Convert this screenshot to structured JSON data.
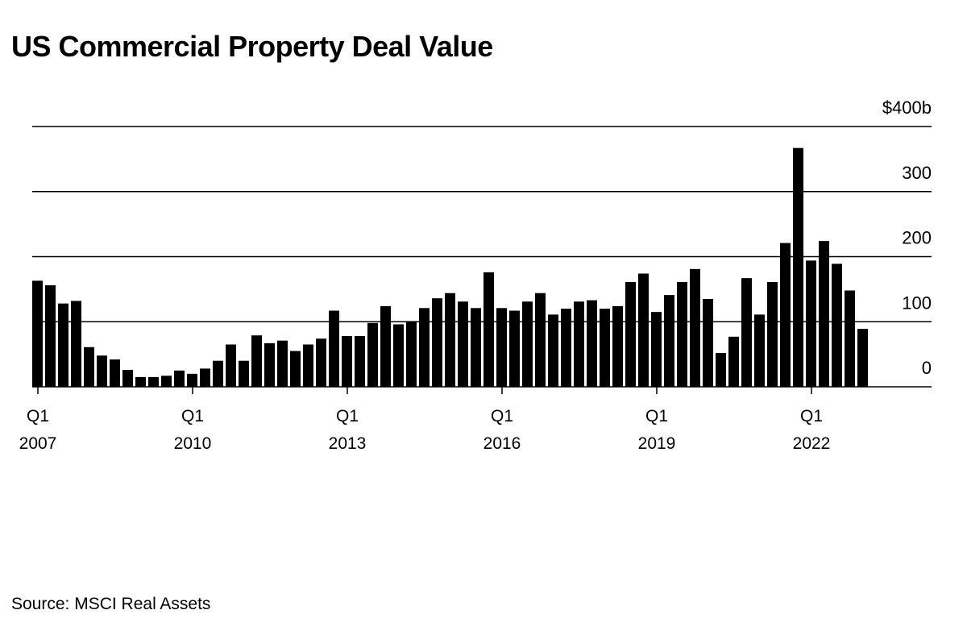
{
  "chart_data": {
    "type": "bar",
    "title": "US Commercial Property Deal Value",
    "xlabel": "",
    "ylabel": "",
    "ylim": [
      0,
      400
    ],
    "y_unit": "billions USD",
    "y_tick_labels": [
      "0",
      "100",
      "200",
      "300",
      "$400b"
    ],
    "y_tick_values": [
      0,
      100,
      200,
      300,
      400
    ],
    "x_tick_labels": [
      {
        "quarter": "Q1",
        "year": "2007",
        "index": 0
      },
      {
        "quarter": "Q1",
        "year": "2010",
        "index": 12
      },
      {
        "quarter": "Q1",
        "year": "2013",
        "index": 24
      },
      {
        "quarter": "Q1",
        "year": "2016",
        "index": 36
      },
      {
        "quarter": "Q1",
        "year": "2019",
        "index": 48
      },
      {
        "quarter": "Q1",
        "year": "2022",
        "index": 60
      }
    ],
    "grid": true,
    "series": [
      {
        "name": "Deal value",
        "color": "#000000",
        "values": [
          163,
          156,
          128,
          132,
          61,
          48,
          42,
          26,
          15,
          15,
          17,
          25,
          20,
          28,
          40,
          65,
          40,
          79,
          67,
          71,
          55,
          65,
          74,
          117,
          78,
          78,
          98,
          124,
          96,
          101,
          121,
          136,
          144,
          131,
          121,
          176,
          121,
          117,
          131,
          144,
          111,
          120,
          131,
          133,
          120,
          124,
          161,
          174,
          115,
          141,
          161,
          181,
          135,
          52,
          77,
          167,
          111,
          161,
          221,
          367,
          194,
          224,
          189,
          148,
          89
        ]
      }
    ]
  },
  "source": "Source: MSCI Real Assets"
}
